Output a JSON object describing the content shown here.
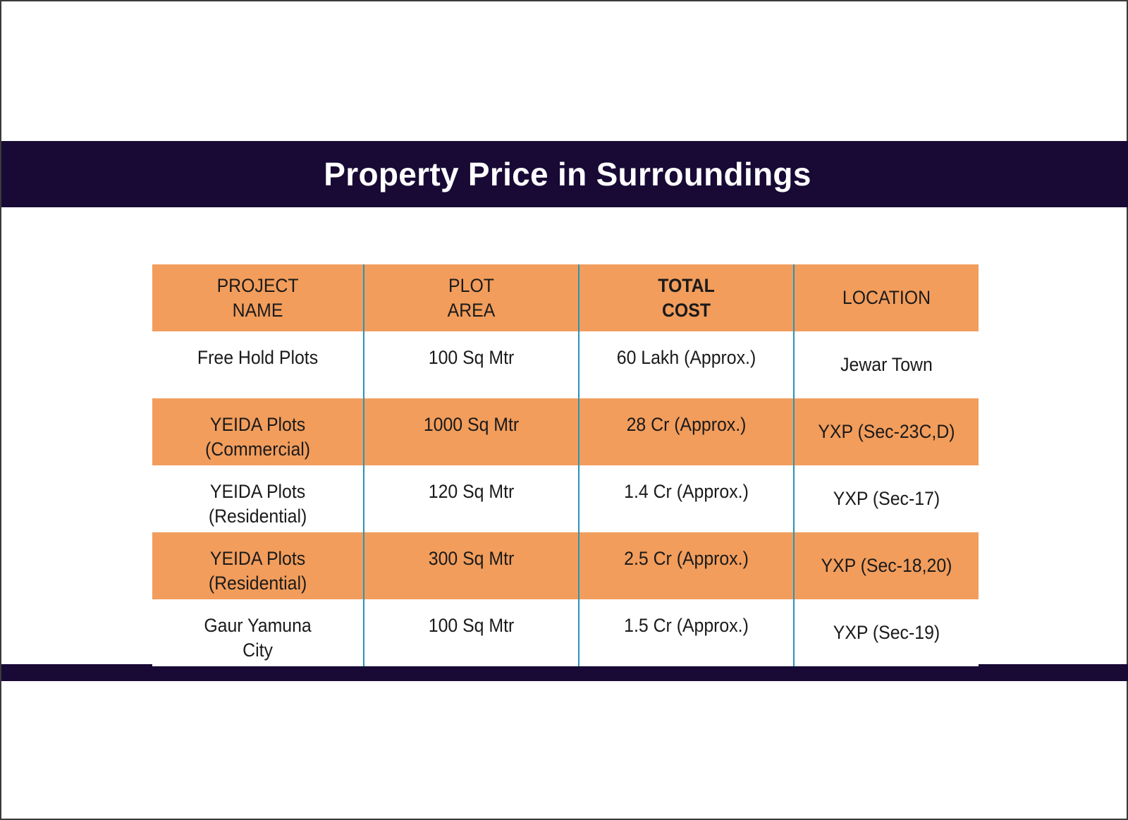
{
  "title": "Property Price in Surroundings",
  "colors": {
    "band": "#180a35",
    "header_fill": "#f29d5c",
    "divider": "#2a93b8",
    "text": "#1a1a1a"
  },
  "table": {
    "headers": [
      "PROJECT\nNAME",
      "PLOT\nAREA",
      "TOTAL\nCOST",
      "LOCATION"
    ],
    "rows": [
      [
        "Free Hold Plots",
        "100 Sq Mtr",
        "60 Lakh (Approx.)",
        "Jewar Town"
      ],
      [
        "YEIDA Plots\n(Commercial)",
        "1000 Sq Mtr",
        "28 Cr (Approx.)",
        "YXP (Sec-23C,D)"
      ],
      [
        "YEIDA Plots\n(Residential)",
        "120 Sq Mtr",
        "1.4 Cr (Approx.)",
        "YXP (Sec-17)"
      ],
      [
        "YEIDA Plots\n(Residential)",
        "300 Sq Mtr",
        "2.5 Cr (Approx.)",
        "YXP (Sec-18,20)"
      ],
      [
        "Gaur Yamuna\nCity",
        "100 Sq Mtr",
        "1.5 Cr (Approx.)",
        "YXP (Sec-19)"
      ]
    ]
  }
}
